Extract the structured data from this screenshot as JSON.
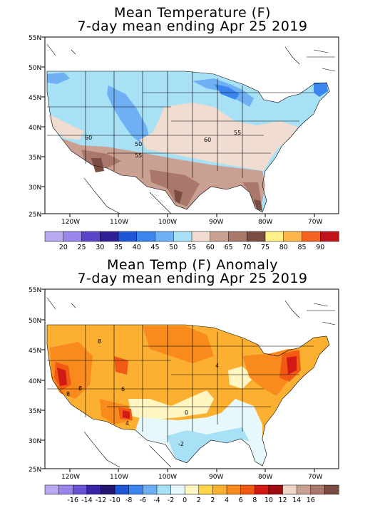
{
  "maps": [
    {
      "id": "temp",
      "title_line1": "Mean Temperature (F)",
      "title_line2": "7-day mean ending Apr 25 2019",
      "lat_labels": [
        "55N",
        "50N",
        "45N",
        "40N",
        "35N",
        "30N",
        "25N"
      ],
      "lon_labels": [
        "120W",
        "110W",
        "100W",
        "90W",
        "80W",
        "70W"
      ],
      "colorbar": {
        "colors": [
          "#b8a9f0",
          "#9a86ea",
          "#5a44c8",
          "#2e1f96",
          "#1d57d6",
          "#3a86ee",
          "#6fb0f4",
          "#a8e0f6",
          "#f0dcd0",
          "#c9a092",
          "#a9786a",
          "#7a4c42",
          "#fff089",
          "#fcb64a",
          "#f4631f",
          "#c0121a"
        ],
        "labels": [
          "20",
          "25",
          "30",
          "35",
          "40",
          "45",
          "50",
          "55",
          "60",
          "65",
          "70",
          "75",
          "80",
          "85",
          "90"
        ]
      },
      "contour_labels": [
        "60",
        "50",
        "55",
        "60",
        "55"
      ]
    },
    {
      "id": "anomaly",
      "title_line1": "Mean Temp (F) Anomaly",
      "title_line2": "7-day mean ending Apr 25 2019",
      "lat_labels": [
        "55N",
        "50N",
        "45N",
        "40N",
        "35N",
        "30N",
        "25N"
      ],
      "lon_labels": [
        "120W",
        "110W",
        "100W",
        "90W",
        "80W",
        "70W"
      ],
      "colorbar": {
        "colors": [
          "#b8a9f0",
          "#9a86ea",
          "#6a52d6",
          "#3a24a8",
          "#22166e",
          "#1d57d6",
          "#3a86ee",
          "#6fb0f4",
          "#a8e0f6",
          "#e6f8fc",
          "#fff6c2",
          "#ffd64a",
          "#fcb032",
          "#f88a1e",
          "#f05a14",
          "#d21a14",
          "#a00c10",
          "#f0d6c8",
          "#c9a092",
          "#a9786a",
          "#7a4c42"
        ],
        "labels": [
          "-16",
          "-14",
          "-12",
          "-10",
          "-8",
          "-6",
          "-4",
          "-2",
          "0",
          "2",
          "2",
          "4",
          "6",
          "8",
          "10",
          "12",
          "14",
          "16"
        ]
      },
      "contour_labels": [
        "8",
        "8",
        "8",
        "6",
        "4",
        "0",
        "-2",
        "4"
      ]
    }
  ]
}
